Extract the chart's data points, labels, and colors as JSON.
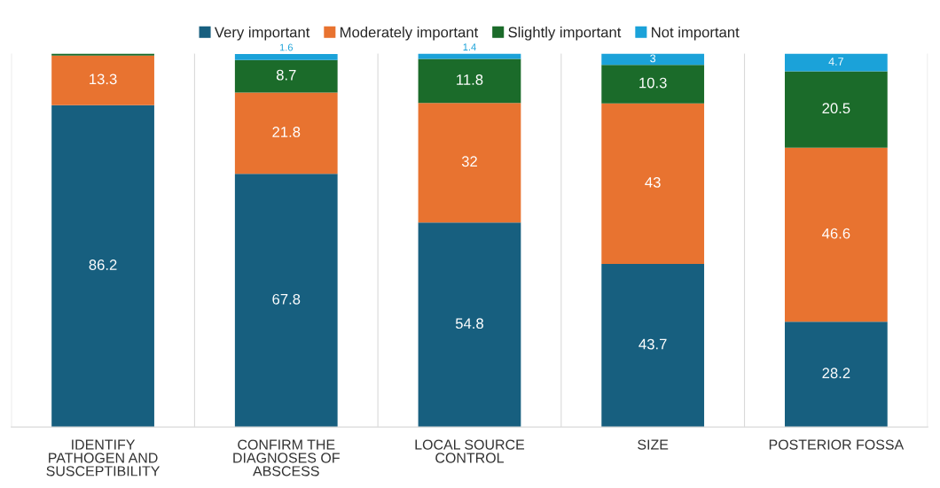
{
  "chart_data": {
    "type": "bar",
    "stacked": true,
    "categories": [
      "IDENTIFY PATHOGEN AND SUSCEPTIBILITY",
      "CONFIRM THE DIAGNOSES OF ABSCESS",
      "LOCAL SOURCE CONTROL",
      "SIZE",
      "POSTERIOR FOSSA"
    ],
    "series": [
      {
        "name": "Very important",
        "color": "#175f7f",
        "values": [
          86.2,
          67.8,
          54.8,
          43.7,
          28.2
        ],
        "value_labels": [
          "86.2",
          "67.8",
          "54.8",
          "43.7",
          "28.2"
        ]
      },
      {
        "name": "Moderately important",
        "color": "#e87330",
        "values": [
          13.3,
          21.8,
          32,
          43,
          46.6
        ],
        "value_labels": [
          "13.3",
          "21.8",
          "32",
          "43",
          "46.6"
        ]
      },
      {
        "name": "Slightly important",
        "color": "#1b6b2a",
        "values": [
          0.5,
          8.7,
          11.8,
          10.3,
          20.5
        ],
        "value_labels": [
          null,
          "8.7",
          "11.8",
          "10.3",
          "20.5"
        ]
      },
      {
        "name": "Not important",
        "color": "#1ba2d9",
        "values": [
          0,
          1.6,
          1.4,
          3,
          4.7
        ],
        "value_labels": [
          null,
          "1.6",
          "1.4",
          "3",
          "4.7"
        ]
      }
    ],
    "ylim": [
      0,
      100
    ],
    "tick_labels": "x",
    "grid": "x",
    "legend": "top"
  }
}
